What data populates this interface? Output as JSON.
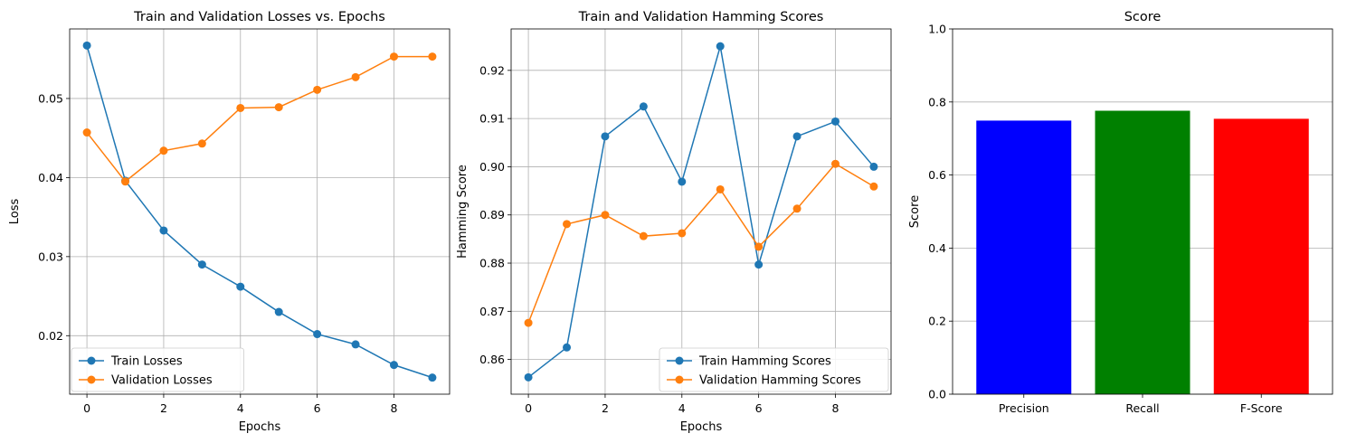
{
  "chart_data": [
    {
      "type": "line",
      "title": "Train and Validation Losses vs. Epochs",
      "xlabel": "Epochs",
      "ylabel": "Loss",
      "xlim": [
        -0.45,
        9.45
      ],
      "ylim": [
        0.0126,
        0.0588
      ],
      "xticks": [
        0,
        2,
        4,
        6,
        8
      ],
      "yticks": [
        0.02,
        0.03,
        0.04,
        0.05
      ],
      "tick_labels_x": [
        "0",
        "2",
        "4",
        "6",
        "8"
      ],
      "tick_labels_y": [
        "0.02",
        "0.03",
        "0.04",
        "0.05"
      ],
      "grid": true,
      "legend_position": "lower-left",
      "x": [
        0,
        1,
        2,
        3,
        4,
        5,
        6,
        7,
        8,
        9
      ],
      "series": [
        {
          "name": "Train Losses",
          "color": "#1f77b4",
          "values": [
            0.0567,
            0.0396,
            0.0333,
            0.029,
            0.0262,
            0.023,
            0.0202,
            0.0189,
            0.0163,
            0.0147
          ]
        },
        {
          "name": "Validation Losses",
          "color": "#ff7f0e",
          "values": [
            0.0457,
            0.0395,
            0.0434,
            0.0443,
            0.0488,
            0.0489,
            0.0511,
            0.0527,
            0.0553,
            0.0553
          ]
        }
      ]
    },
    {
      "type": "line",
      "title": "Train and Validation Hamming Scores",
      "xlabel": "Epochs",
      "ylabel": "Hamming Score",
      "xlim": [
        -0.45,
        9.45
      ],
      "ylim": [
        0.8528,
        0.9286
      ],
      "xticks": [
        0,
        2,
        4,
        6,
        8
      ],
      "yticks": [
        0.86,
        0.87,
        0.88,
        0.89,
        0.9,
        0.91,
        0.92
      ],
      "tick_labels_x": [
        "0",
        "2",
        "4",
        "6",
        "8"
      ],
      "tick_labels_y": [
        "0.86",
        "0.87",
        "0.88",
        "0.89",
        "0.90",
        "0.91",
        "0.92"
      ],
      "grid": true,
      "legend_position": "lower-right",
      "x": [
        0,
        1,
        2,
        3,
        4,
        5,
        6,
        7,
        8,
        9
      ],
      "series": [
        {
          "name": "Train Hamming Scores",
          "color": "#1f77b4",
          "values": [
            0.8563,
            0.8625,
            0.9063,
            0.9125,
            0.8969,
            0.925,
            0.8797,
            0.9063,
            0.9094,
            0.9
          ]
        },
        {
          "name": "Validation Hamming Scores",
          "color": "#ff7f0e",
          "values": [
            0.8676,
            0.8881,
            0.89,
            0.8856,
            0.8862,
            0.8953,
            0.8834,
            0.8913,
            0.9006,
            0.8959
          ]
        }
      ]
    },
    {
      "type": "bar",
      "title": "Score",
      "xlabel": "",
      "ylabel": "Score",
      "ylim": [
        0,
        1.0
      ],
      "yticks": [
        0,
        0.2,
        0.4,
        0.6,
        0.8,
        1.0
      ],
      "tick_labels_y": [
        "0.0",
        "0.2",
        "0.4",
        "0.6",
        "0.8",
        "1.0"
      ],
      "grid": true,
      "grid_axis": "y",
      "categories": [
        "Precision",
        "Recall",
        "F-Score"
      ],
      "values": [
        0.749,
        0.776,
        0.754
      ],
      "colors": [
        "#0000ff",
        "#008000",
        "#ff0000"
      ]
    }
  ]
}
